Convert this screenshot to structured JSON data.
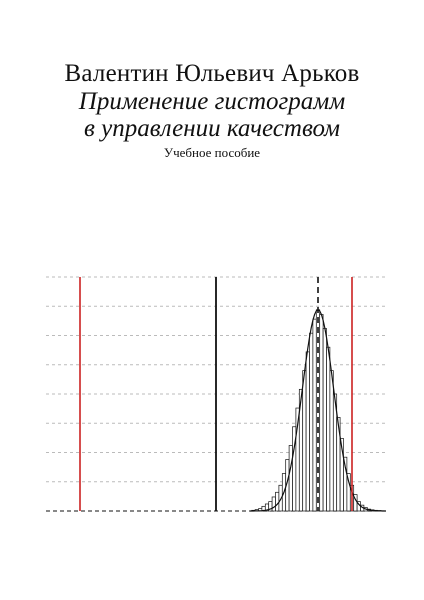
{
  "cover": {
    "author": "Валентин Юльевич Арьков",
    "title_line1": "Применение гистограмм",
    "title_line2": "в управлении качеством",
    "subtitle": "Учебное пособие"
  },
  "chart_data": {
    "type": "bar",
    "description_free": true,
    "xlim": [
      0,
      100
    ],
    "ylim": [
      0,
      100
    ],
    "grid": true,
    "grid_lines_y": [
      0,
      12.5,
      25,
      37.5,
      50,
      62.5,
      75,
      87.5,
      100
    ],
    "reference_lines": [
      {
        "kind": "lower-spec-limit",
        "x": 10,
        "color": "#cc2222",
        "style": "solid"
      },
      {
        "kind": "target",
        "x": 50,
        "color": "#111111",
        "style": "solid"
      },
      {
        "kind": "mean",
        "x": 80,
        "color": "#111111",
        "style": "dashed"
      },
      {
        "kind": "upper-spec-limit",
        "x": 90,
        "color": "#cc2222",
        "style": "solid"
      }
    ],
    "bins_x": [
      61,
      62,
      63,
      64,
      65,
      66,
      67,
      68,
      69,
      70,
      71,
      72,
      73,
      74,
      75,
      76,
      77,
      78,
      79,
      80,
      81,
      82,
      83,
      84,
      85,
      86,
      87,
      88,
      89,
      90,
      91,
      92,
      93,
      94,
      95,
      96,
      97,
      98,
      99
    ],
    "values": [
      0.3,
      0.6,
      1,
      2,
      3,
      4,
      6,
      8,
      11,
      16,
      22,
      28,
      36,
      44,
      52,
      60,
      68,
      76,
      82,
      86,
      84,
      78,
      70,
      60,
      50,
      40,
      31,
      23,
      16,
      11,
      7,
      4,
      2.5,
      1.5,
      0.8,
      0.5,
      0.3,
      0.2,
      0.1
    ],
    "curve": "normal",
    "colors": {
      "axis": "#111111",
      "grid": "#bbbbbb",
      "spec": "#cc2222",
      "bar": "#111111"
    }
  }
}
